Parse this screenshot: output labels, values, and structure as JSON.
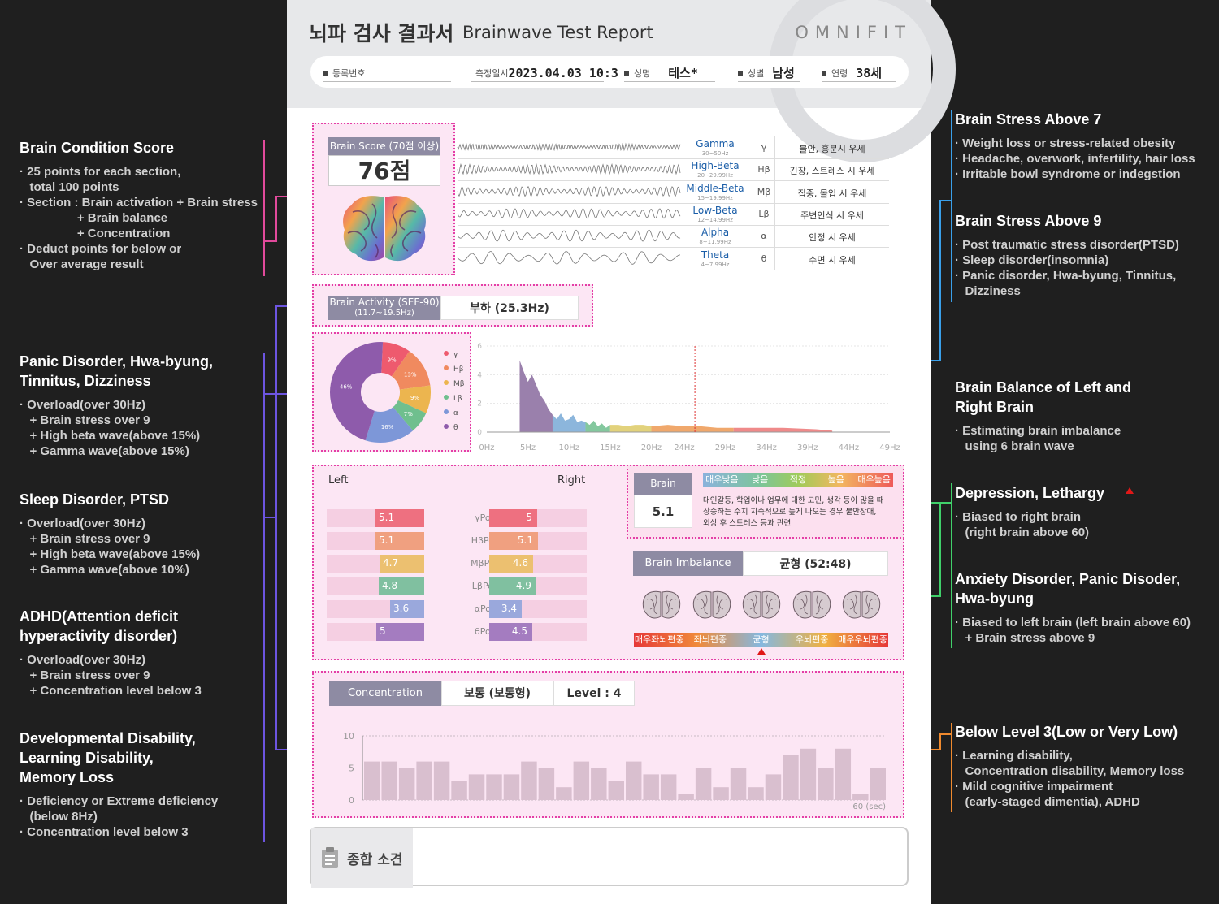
{
  "left_panel": {
    "sections": [
      {
        "title": "Brain Condition Score",
        "items": [
          "· 25 points for each section,",
          "   total 100 points",
          "· Section : Brain activation + Brain stress",
          "                 + Brain balance",
          "                 + Concentration",
          "· Deduct points for below or",
          "   Over average result"
        ]
      },
      {
        "title": "Panic Disorder, Hwa-byung,\nTinnitus, Dizziness",
        "items": [
          "· Overload(over 30Hz)",
          "   + Brain stress over 9",
          "   + High beta wave(above 15%)",
          "   + Gamma wave(above 15%)"
        ]
      },
      {
        "title": "Sleep Disorder, PTSD",
        "items": [
          "· Overload(over 30Hz)",
          "   + Brain stress over 9",
          "   + High beta wave(above 15%)",
          "   + Gamma wave(above 10%)"
        ]
      },
      {
        "title": "ADHD(Attention deficit\nhyperactivity disorder)",
        "items": [
          "· Overload(over 30Hz)",
          "   + Brain stress over 9",
          "   + Concentration level below 3"
        ]
      },
      {
        "title": "Developmental Disability,\nLearning Disability,\nMemory Loss",
        "items": [
          "· Deficiency or Extreme deficiency",
          "   (below 8Hz)",
          "· Concentration level below 3"
        ]
      }
    ]
  },
  "right_panel": {
    "sections": [
      {
        "title": "Brain Stress Above 7",
        "items": [
          "· Weight loss or stress-related obesity",
          "· Headache, overwork, infertility, hair loss",
          "· Irritable bowl syndrome or indegstion"
        ]
      },
      {
        "title": "Brain Stress Above 9",
        "items": [
          "· Post traumatic stress disorder(PTSD)",
          "· Sleep disorder(insomnia)",
          "· Panic disorder, Hwa-byung, Tinnitus,",
          "   Dizziness"
        ]
      },
      {
        "title": "Brain Balance of Left and\nRight Brain",
        "items": [
          "· Estimating brain imbalance",
          "   using 6 brain wave"
        ]
      },
      {
        "title": "Depression, Lethargy",
        "items": [
          "· Biased to right brain",
          "   (right brain above 60)"
        ]
      },
      {
        "title": "Anxiety Disorder, Panic Disoder,\nHwa-byung",
        "items": [
          "· Biased to left brain (left brain above 60)",
          "   + Brain stress above 9"
        ]
      },
      {
        "title": "Below Level 3(Low or Very Low)",
        "items": [
          "· Learning disability,",
          "   Concentration disability, Memory loss",
          "· Mild cognitive impairment",
          "   (early-staged dimentia), ADHD"
        ]
      }
    ]
  },
  "report": {
    "title_ko": "뇌파 검사 결과서",
    "title_en": "Brainwave Test Report",
    "brand": "OMNIFIT",
    "fields": {
      "reg_label": "등록번호",
      "reg_value": "",
      "date_label": "측정일시",
      "date_value": "2023.04.03 10:3",
      "name_label": "성명",
      "name_value": "테스*",
      "sex_label": "성별",
      "sex_value": "남성",
      "age_label": "연령",
      "age_value": "38세"
    },
    "brain_score": {
      "label": "Brain Score (70점 이상)",
      "value": "76점"
    },
    "waves": [
      {
        "name": "Gamma",
        "range": "30~50Hz",
        "symbol": "γ",
        "desc": "불안, 흥분시 우세"
      },
      {
        "name": "High-Beta",
        "range": "20~29.99Hz",
        "symbol": "Hβ",
        "desc": "긴장, 스트레스 시 우세"
      },
      {
        "name": "Middle-Beta",
        "range": "15~19.99Hz",
        "symbol": "Mβ",
        "desc": "집중, 몰입 시 우세"
      },
      {
        "name": "Low-Beta",
        "range": "12~14.99Hz",
        "symbol": "Lβ",
        "desc": "주변인식 시 우세"
      },
      {
        "name": "Alpha",
        "range": "8~11.99Hz",
        "symbol": "α",
        "desc": "안정 시 우세"
      },
      {
        "name": "Theta",
        "range": "4~7.99Hz",
        "symbol": "θ",
        "desc": "수면 시 우세"
      }
    ],
    "activity": {
      "label": "Brain Activity (SEF-90)",
      "sub": "(11.7~19.5Hz)",
      "value": "부하 (25.3Hz)"
    },
    "power": {
      "left_label": "Left",
      "right_label": "Right",
      "rows": [
        {
          "label": "γPower",
          "left": 5.1,
          "right": 5,
          "left_txt": "5.1",
          "right_txt": "5",
          "color": "#ee7080"
        },
        {
          "label": "HβPower",
          "left": 5.1,
          "right": 5.1,
          "left_txt": "5.1",
          "right_txt": "5.1",
          "color": "#f0a080"
        },
        {
          "label": "MβPower",
          "left": 4.7,
          "right": 4.6,
          "left_txt": "4.7",
          "right_txt": "4.6",
          "color": "#ecc070"
        },
        {
          "label": "LβPower",
          "left": 4.8,
          "right": 4.9,
          "left_txt": "4.8",
          "right_txt": "4.9",
          "color": "#80c0a0"
        },
        {
          "label": "αPower",
          "left": 3.6,
          "right": 3.4,
          "left_txt": "3.6",
          "right_txt": "3.4",
          "color": "#9aa8dc"
        },
        {
          "label": "θPower",
          "left": 5,
          "right": 4.5,
          "left_txt": "5",
          "right_txt": "4.5",
          "color": "#a47cc0"
        }
      ]
    },
    "stress": {
      "label": "Brain Stress",
      "value": "5.1",
      "scale": [
        "매우낮음",
        "낮음",
        "적정",
        "높음",
        "매우높음"
      ],
      "level": 0.45,
      "desc": [
        "대인갈등, 학업이나 업무에 대한 고민, 생각 등이 많을 때",
        "상승하는 수치 지속적으로 높게 나오는 경우 불안장애,",
        "외상 후 스트레스 등과 관련"
      ]
    },
    "imbalance": {
      "label": "Brain Imbalance",
      "value": "균형 (52:48)",
      "scale": [
        "매우좌뇌편중",
        "좌뇌편중",
        "균형",
        "우뇌편중",
        "매우우뇌편중"
      ],
      "level": 0.5
    },
    "concentration": {
      "label": "Concentration",
      "value": "보통 (보통형)",
      "level": "Level : 4"
    },
    "summary_label": "종합 소견"
  },
  "chart_data": [
    {
      "type": "pie",
      "title": "",
      "legend": [
        "γ",
        "Hβ",
        "Mβ",
        "Lβ",
        "α",
        "θ"
      ],
      "values": [
        9,
        13,
        9,
        7,
        16,
        46
      ],
      "labels": [
        "9%",
        "13%",
        "9%",
        "7%",
        "16%",
        "46%"
      ],
      "colors": [
        "#ee5a6e",
        "#f08a5f",
        "#ecb54f",
        "#6fbf8e",
        "#7d97d8",
        "#8e5bab"
      ],
      "legend_position": "right"
    },
    {
      "type": "area",
      "x_ticks": [
        "0Hz",
        "5Hz",
        "10Hz",
        "15Hz",
        "20Hz",
        "24Hz",
        "29Hz",
        "34Hz",
        "39Hz",
        "44Hz",
        "49Hz"
      ],
      "y_ticks": [
        "0",
        "2",
        "4",
        "6"
      ],
      "ylim": [
        0,
        6
      ],
      "xlim": [
        0,
        49
      ],
      "marker_x": 25.3,
      "x": [
        4,
        4.5,
        5,
        5.5,
        6,
        6.5,
        7,
        7.5,
        8,
        8.5,
        9,
        9.5,
        10,
        10.5,
        11,
        11.5,
        12,
        12.5,
        13,
        13.5,
        14,
        14.5,
        15,
        16,
        17,
        18,
        19,
        20,
        22,
        24,
        26,
        28,
        30,
        32,
        34,
        36,
        38,
        40,
        42
      ],
      "y": [
        5,
        4.2,
        3.5,
        4.0,
        3.3,
        2.6,
        2.2,
        1.6,
        1.2,
        0.9,
        1.3,
        0.8,
        0.9,
        1.2,
        0.7,
        0.8,
        0.7,
        0.5,
        0.8,
        0.4,
        0.6,
        0.3,
        0.5,
        0.5,
        0.4,
        0.5,
        0.5,
        0.4,
        0.5,
        0.4,
        0.4,
        0.3,
        0.3,
        0.3,
        0.3,
        0.3,
        0.25,
        0.2,
        0.1
      ],
      "colors": [
        "#9b80ab",
        "#8eb6dc",
        "#86c8a0",
        "#e2d27e",
        "#f0a86e",
        "#ef8b8b"
      ],
      "grid": true
    },
    {
      "type": "bar",
      "title": "",
      "ylim": [
        0,
        10
      ],
      "y_ticks": [
        "0",
        "5",
        "10"
      ],
      "x_end_label": "60 (sec)",
      "values": [
        6,
        6,
        5,
        6,
        6,
        3,
        4,
        4,
        4,
        6,
        5,
        2,
        6,
        5,
        3,
        6,
        4,
        4,
        1,
        5,
        2,
        5,
        2,
        4,
        7,
        8,
        5,
        8,
        1,
        5
      ],
      "color": "#d9bfcf",
      "grid": true
    }
  ]
}
